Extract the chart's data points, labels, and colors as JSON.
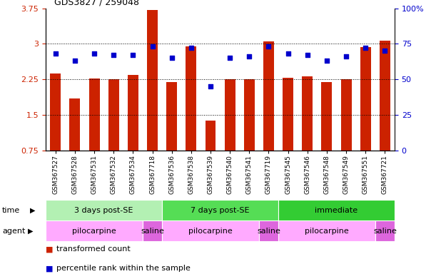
{
  "title": "GDS3827 / 259048",
  "samples": [
    "GSM367527",
    "GSM367528",
    "GSM367531",
    "GSM367532",
    "GSM367534",
    "GSM367718",
    "GSM367536",
    "GSM367538",
    "GSM367539",
    "GSM367540",
    "GSM367541",
    "GSM367719",
    "GSM367545",
    "GSM367546",
    "GSM367548",
    "GSM367549",
    "GSM367551",
    "GSM367721"
  ],
  "bar_values": [
    2.38,
    1.85,
    2.27,
    2.25,
    2.35,
    3.72,
    2.19,
    2.95,
    1.38,
    2.25,
    2.25,
    3.05,
    2.28,
    2.32,
    2.2,
    2.25,
    2.93,
    3.07
  ],
  "dot_values": [
    68,
    63,
    68,
    67,
    67,
    73,
    65,
    72,
    45,
    65,
    66,
    73,
    68,
    67,
    63,
    66,
    72,
    70
  ],
  "bar_color": "#cc2200",
  "dot_color": "#0000cc",
  "bar_bottom": 0.75,
  "ylim_left": [
    0.75,
    3.75
  ],
  "ylim_right": [
    0,
    100
  ],
  "yticks_left": [
    0.75,
    1.5,
    2.25,
    3.0,
    3.75
  ],
  "yticks_right": [
    0,
    25,
    50,
    75,
    100
  ],
  "ytick_labels_left": [
    "0.75",
    "1.5",
    "2.25",
    "3",
    "3.75"
  ],
  "ytick_labels_right": [
    "0",
    "25",
    "50",
    "75",
    "100%"
  ],
  "time_groups": [
    {
      "label": "3 days post-SE",
      "start": 0,
      "end": 5,
      "color": "#b3f0b3"
    },
    {
      "label": "7 days post-SE",
      "start": 6,
      "end": 11,
      "color": "#55dd55"
    },
    {
      "label": "immediate",
      "start": 12,
      "end": 17,
      "color": "#33cc33"
    }
  ],
  "agent_groups": [
    {
      "label": "pilocarpine",
      "start": 0,
      "end": 4,
      "color": "#ffaaff"
    },
    {
      "label": "saline",
      "start": 5,
      "end": 5,
      "color": "#dd66dd"
    },
    {
      "label": "pilocarpine",
      "start": 6,
      "end": 10,
      "color": "#ffaaff"
    },
    {
      "label": "saline",
      "start": 11,
      "end": 11,
      "color": "#dd66dd"
    },
    {
      "label": "pilocarpine",
      "start": 12,
      "end": 16,
      "color": "#ffaaff"
    },
    {
      "label": "saline",
      "start": 17,
      "end": 17,
      "color": "#dd66dd"
    }
  ],
  "legend_items": [
    {
      "label": "transformed count",
      "color": "#cc2200"
    },
    {
      "label": "percentile rank within the sample",
      "color": "#0000cc"
    }
  ],
  "dotted_grid_values": [
    1.5,
    2.25,
    3.0
  ],
  "background_color": "#ffffff",
  "axes_background": "#ffffff",
  "tick_label_color_left": "#cc2200",
  "tick_label_color_right": "#0000cc",
  "bar_width": 0.55
}
